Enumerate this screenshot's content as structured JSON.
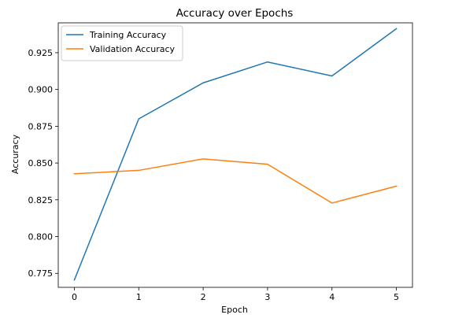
{
  "chart_data": {
    "type": "line",
    "title": "Accuracy over Epochs",
    "xlabel": "Epoch",
    "ylabel": "Accuracy",
    "x": [
      0,
      1,
      2,
      3,
      4,
      5
    ],
    "xlim": [
      -0.25,
      5.25
    ],
    "ylim": [
      0.7655,
      0.9453
    ],
    "xticks": [
      0,
      1,
      2,
      3,
      4,
      5
    ],
    "yticks": [
      0.775,
      0.8,
      0.825,
      0.85,
      0.875,
      0.9,
      0.925
    ],
    "ytick_labels": [
      "0.775",
      "0.800",
      "0.825",
      "0.850",
      "0.875",
      "0.900",
      "0.925"
    ],
    "grid": false,
    "legend_position": "top-left",
    "series": [
      {
        "name": "Training Accuracy",
        "color": "#1f77b4",
        "values": [
          0.7705,
          0.88,
          0.9045,
          0.9187,
          0.9092,
          0.9413
        ]
      },
      {
        "name": "Validation Accuracy",
        "color": "#ff7f0e",
        "values": [
          0.8427,
          0.845,
          0.8528,
          0.8492,
          0.8228,
          0.8343
        ]
      }
    ]
  }
}
